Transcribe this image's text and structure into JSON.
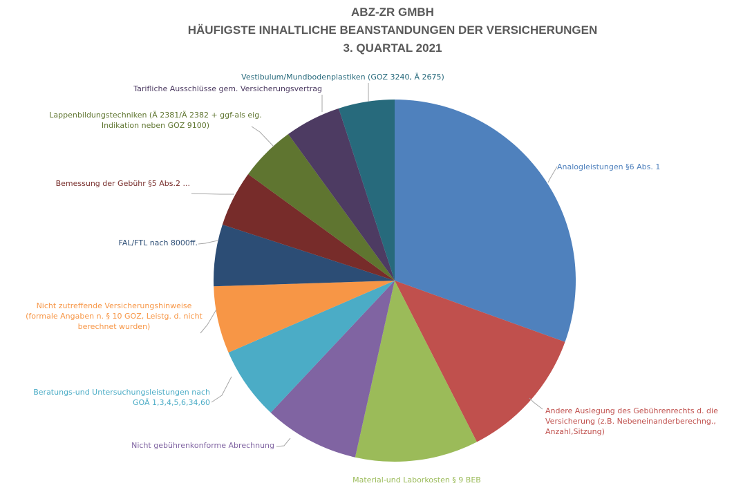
{
  "chart_data": {
    "type": "pie",
    "title_lines": [
      "ABZ-ZR GMBH",
      "HÄUFIGSTE INHALTLICHE BEANSTANDUNGEN DER VERSICHERUNGEN",
      "3. QUARTAL 2021"
    ],
    "slices": [
      {
        "label_lines": [
          "Analogleistungen §6 Abs. 1"
        ],
        "value": 30.5,
        "color": "#4f81bd"
      },
      {
        "label_lines": [
          "Andere Auslegung des Gebührenrechts d. die",
          "Versicherung (z.B. Nebeneinanderberechng.,",
          "Anzahl,Sitzung)"
        ],
        "value": 12.0,
        "color": "#c0504d"
      },
      {
        "label_lines": [
          "Material-und Laborkosten § 9 BEB"
        ],
        "value": 11.0,
        "color": "#9bbb59"
      },
      {
        "label_lines": [
          "Nicht gebührenkonforme Abrechnung"
        ],
        "value": 8.5,
        "color": "#8064a2"
      },
      {
        "label_lines": [
          "Beratungs-und Untersuchungsleistungen nach",
          "GOÄ 1,3,4,5,6,34,60"
        ],
        "value": 6.5,
        "color": "#4bacc6"
      },
      {
        "label_lines": [
          "Nicht zutreffende Versicherungshinweise",
          "(formale Angaben n. § 10 GOZ, Leistg. d. nicht",
          "berechnet wurden)"
        ],
        "value": 6.0,
        "color": "#f79646"
      },
      {
        "label_lines": [
          "FAL/FTL nach 8000ff."
        ],
        "value": 5.5,
        "color": "#2c4d75"
      },
      {
        "label_lines": [
          "Bemessung der Gebühr §5 Abs.2 ..."
        ],
        "value": 5.0,
        "color": "#772c2a"
      },
      {
        "label_lines": [
          "Lappenbildungstechniken (Ä 2381/Ä 2382 + ggf-als eig.",
          "Indikation neben GOZ 9100)"
        ],
        "value": 5.0,
        "color": "#5f7530"
      },
      {
        "label_lines": [
          "Tarifliche Ausschlüsse gem. Versicherungsvertrag"
        ],
        "value": 5.0,
        "color": "#4d3b62"
      },
      {
        "label_lines": [
          "Vestibulum/Mundbodenplastiken (GOZ 3240, Ä 2675)"
        ],
        "value": 5.0,
        "color": "#276a7c"
      }
    ]
  }
}
